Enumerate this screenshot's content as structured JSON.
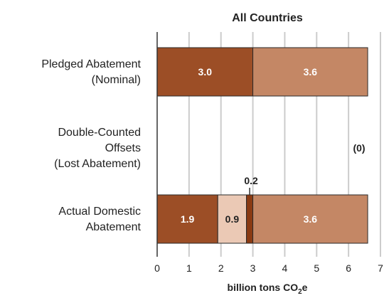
{
  "chart_data": {
    "type": "bar",
    "orientation": "horizontal",
    "stacked": true,
    "title": "All Countries",
    "xlabel": {
      "main": "billion tons CO",
      "sub": "2",
      "tail": "e"
    },
    "xlim": [
      0,
      7
    ],
    "xticks": [
      "0",
      "1",
      "2",
      "3",
      "4",
      "5",
      "6",
      "7"
    ],
    "grid": "vertical",
    "categories": [
      {
        "lines": [
          "Pledged Abatement",
          "(Nominal)"
        ]
      },
      {
        "lines": [
          "Double-Counted",
          "Offsets",
          "(Lost Abatement)"
        ]
      },
      {
        "lines": [
          "Actual Domestic",
          "Abatement"
        ]
      }
    ],
    "bars": [
      {
        "category_index": 0,
        "segments": [
          {
            "value": 3.0,
            "label": "3.0",
            "color": "#9c4e26",
            "label_color": "#ffffff"
          },
          {
            "value": 3.6,
            "label": "3.6",
            "color": "#c48765",
            "label_color": "#ffffff"
          }
        ]
      },
      {
        "category_index": 1,
        "segments": [],
        "annotation": {
          "text": "(0)",
          "x": 6.6
        }
      },
      {
        "category_index": 2,
        "segments": [
          {
            "value": 1.9,
            "label": "1.9",
            "color": "#9c4e26",
            "label_color": "#ffffff"
          },
          {
            "value": 0.9,
            "label": "0.9",
            "color": "#ebc9b5",
            "label_color": "#222222"
          },
          {
            "value": 0.2,
            "label": "0.2",
            "color": "#8a3a12",
            "label_color": "#222222",
            "label_above": true
          },
          {
            "value": 3.6,
            "label": "3.6",
            "color": "#c48765",
            "label_color": "#ffffff"
          }
        ]
      }
    ],
    "colors": {
      "edge": "#2a2a2a",
      "grid": "#cccccc",
      "axis": "#333333"
    }
  }
}
